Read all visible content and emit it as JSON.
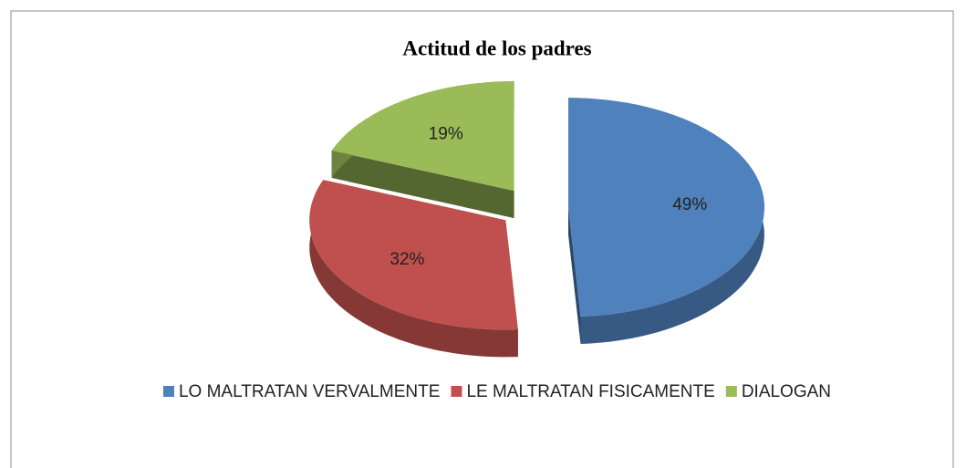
{
  "chart_data": {
    "type": "pie3d",
    "title": "Actitud de los padres",
    "categories": [
      "LO MALTRATAN VERVALMENTE",
      "LE MALTRATAN FISICAMENTE",
      "DIALOGAN"
    ],
    "values": [
      49,
      32,
      19
    ],
    "value_labels": [
      "49%",
      "32%",
      "19%"
    ],
    "colors": [
      "#4f81bd",
      "#c0504d",
      "#9bbb59"
    ],
    "legend": "bottom"
  }
}
